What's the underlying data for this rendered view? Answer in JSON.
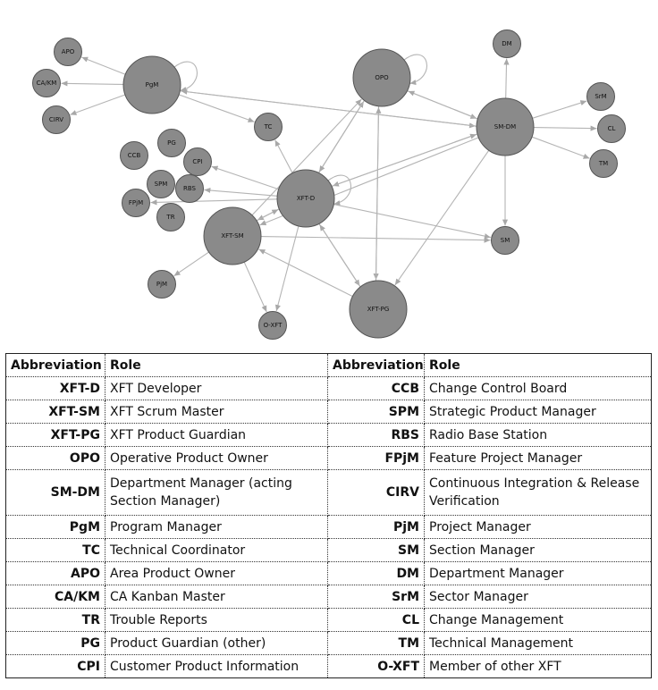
{
  "nodes": [
    {
      "id": "APO",
      "label": "APO",
      "size": "s"
    },
    {
      "id": "CAKM",
      "label": "CA/KM",
      "size": "s"
    },
    {
      "id": "CIRV",
      "label": "CIRV",
      "size": "s"
    },
    {
      "id": "PgM",
      "label": "PgM",
      "size": "l"
    },
    {
      "id": "TC",
      "label": "TC",
      "size": "s"
    },
    {
      "id": "OPO",
      "label": "OPO",
      "size": "l"
    },
    {
      "id": "DM",
      "label": "DM",
      "size": "s"
    },
    {
      "id": "SrM",
      "label": "SrM",
      "size": "s"
    },
    {
      "id": "SMDM",
      "label": "SM-DM",
      "size": "l"
    },
    {
      "id": "CL",
      "label": "CL",
      "size": "s"
    },
    {
      "id": "TM",
      "label": "TM",
      "size": "s"
    },
    {
      "id": "PG",
      "label": "PG",
      "size": "s"
    },
    {
      "id": "CCB",
      "label": "CCB",
      "size": "s"
    },
    {
      "id": "CPI",
      "label": "CPI",
      "size": "s"
    },
    {
      "id": "SPM",
      "label": "SPM",
      "size": "s"
    },
    {
      "id": "RBS",
      "label": "RBS",
      "size": "s"
    },
    {
      "id": "FPjM",
      "label": "FPjM",
      "size": "s"
    },
    {
      "id": "TR",
      "label": "TR",
      "size": "s"
    },
    {
      "id": "XFTD",
      "label": "XFT-D",
      "size": "l"
    },
    {
      "id": "XFTSM",
      "label": "XFT-SM",
      "size": "l"
    },
    {
      "id": "SM",
      "label": "SM",
      "size": "s"
    },
    {
      "id": "PjM",
      "label": "PjM",
      "size": "s"
    },
    {
      "id": "OXFT",
      "label": "O-XFT",
      "size": "s"
    },
    {
      "id": "XFTPG",
      "label": "XFT-PG",
      "size": "l"
    }
  ],
  "edges": [
    [
      "PgM",
      "APO"
    ],
    [
      "PgM",
      "CAKM"
    ],
    [
      "PgM",
      "CIRV"
    ],
    [
      "PgM",
      "TC"
    ],
    [
      "PgM",
      "PgM"
    ],
    [
      "PgM",
      "SMDM"
    ],
    [
      "SMDM",
      "PgM"
    ],
    [
      "OPO",
      "OPO"
    ],
    [
      "OPO",
      "SMDM"
    ],
    [
      "SMDM",
      "OPO"
    ],
    [
      "SMDM",
      "DM"
    ],
    [
      "SMDM",
      "SrM"
    ],
    [
      "SMDM",
      "CL"
    ],
    [
      "SMDM",
      "TM"
    ],
    [
      "SMDM",
      "SM"
    ],
    [
      "SMDM",
      "XFTD"
    ],
    [
      "SMDM",
      "XFTSM"
    ],
    [
      "SMDM",
      "XFTPG"
    ],
    [
      "XFTD",
      "SMDM"
    ],
    [
      "XFTD",
      "OPO"
    ],
    [
      "OPO",
      "XFTD"
    ],
    [
      "XFTSM",
      "OPO"
    ],
    [
      "OPO",
      "XFTPG"
    ],
    [
      "XFTPG",
      "OPO"
    ],
    [
      "XFTD",
      "TC"
    ],
    [
      "XFTD",
      "CPI"
    ],
    [
      "XFTD",
      "RBS"
    ],
    [
      "XFTD",
      "FPjM"
    ],
    [
      "XFTD",
      "XFTD"
    ],
    [
      "XFTD",
      "XFTSM"
    ],
    [
      "XFTSM",
      "XFTD"
    ],
    [
      "XFTD",
      "XFTPG"
    ],
    [
      "XFTPG",
      "XFTD"
    ],
    [
      "XFTD",
      "SM"
    ],
    [
      "XFTD",
      "OXFT"
    ],
    [
      "XFTSM",
      "PjM"
    ],
    [
      "XFTSM",
      "OXFT"
    ],
    [
      "XFTSM",
      "SM"
    ],
    [
      "XFTPG",
      "XFTSM"
    ]
  ],
  "table": {
    "headers": [
      "Abbreviation",
      "Role",
      "Abbreviation",
      "Role"
    ],
    "rows": [
      {
        "a1": "XFT-D",
        "r1": "XFT Developer",
        "a2": "CCB",
        "r2": "Change Control Board"
      },
      {
        "a1": "XFT-SM",
        "r1": "XFT Scrum Master",
        "a2": "SPM",
        "r2": "Strategic Product Manager"
      },
      {
        "a1": "XFT-PG",
        "r1": "XFT Product Guardian",
        "a2": "RBS",
        "r2": "Radio Base Station"
      },
      {
        "a1": "OPO",
        "r1": "Operative Product Owner",
        "a2": "FPjM",
        "r2": "Feature Project Manager"
      },
      {
        "a1": "SM-DM",
        "r1": "Department Manager (acting Section Manager)",
        "a2": "CIRV",
        "r2": "Continuous Integration & Release Verification"
      },
      {
        "a1": "PgM",
        "r1": "Program Manager",
        "a2": "PjM",
        "r2": "Project Manager"
      },
      {
        "a1": "TC",
        "r1": "Technical Coordinator",
        "a2": "SM",
        "r2": "Section Manager"
      },
      {
        "a1": "APO",
        "r1": "Area Product Owner",
        "a2": "DM",
        "r2": "Department Manager"
      },
      {
        "a1": "CA/KM",
        "r1": "CA Kanban Master",
        "a2": "SrM",
        "r2": "Sector Manager"
      },
      {
        "a1": "TR",
        "r1": "Trouble Reports",
        "a2": "CL",
        "r2": "Change Management"
      },
      {
        "a1": "PG",
        "r1": "Product Guardian (other)",
        "a2": "TM",
        "r2": "Technical Management"
      },
      {
        "a1": "CPI",
        "r1": "Customer Product Information",
        "a2": "O-XFT",
        "r2": "Member of other XFT"
      }
    ]
  }
}
